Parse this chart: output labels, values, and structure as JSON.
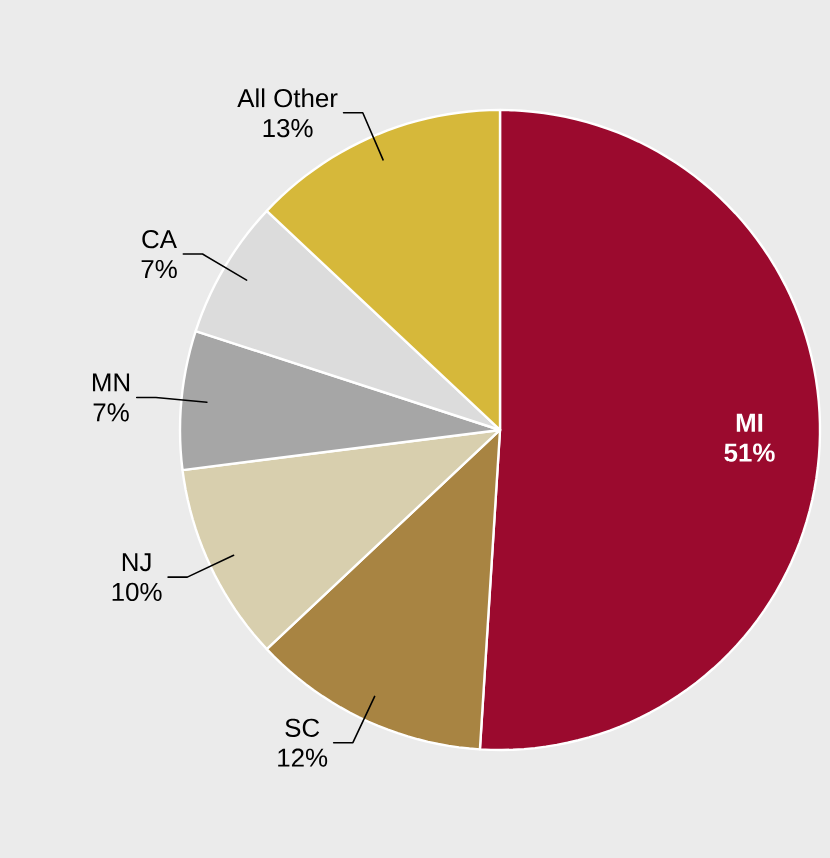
{
  "chart_data": {
    "type": "pie",
    "categories": [
      "MI",
      "SC",
      "NJ",
      "MN",
      "CA",
      "All Other"
    ],
    "values": [
      51,
      12,
      10,
      7,
      7,
      13
    ],
    "value_labels": [
      "51%",
      "12%",
      "10%",
      "7%",
      "7%",
      "13%"
    ],
    "colors": [
      "#9b0a2e",
      "#a88442",
      "#d8cfae",
      "#a6a6a6",
      "#dcdcdc",
      "#d6b83a"
    ]
  }
}
